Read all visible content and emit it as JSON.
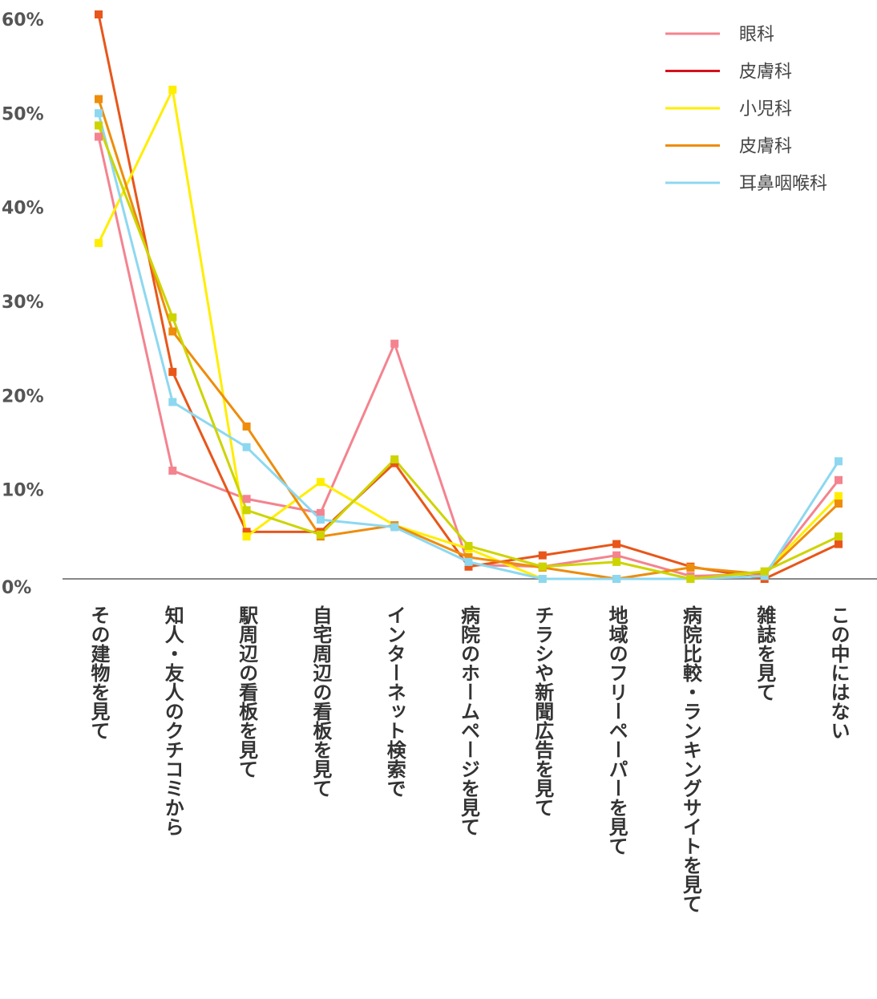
{
  "chart_data": {
    "type": "line",
    "title": "",
    "xlabel": "",
    "ylabel": "",
    "ylim": [
      0,
      60
    ],
    "y_ticks": [
      "0%",
      "10%",
      "20%",
      "30%",
      "40%",
      "50%",
      "60%"
    ],
    "y_tick_values": [
      0,
      10,
      20,
      30,
      40,
      50,
      60
    ],
    "grid": false,
    "legend_position": "top-right",
    "categories": [
      "その建物を見て",
      "知人・友人のクチコミから",
      "駅周辺の看板を見て",
      "自宅周辺の看板を見て",
      "インターネット検索で",
      "病院のホームページを見て",
      "チラシや新聞広告を見て",
      "地域のフリーペーパーを見て",
      "病院比較・ランキングサイトを見て",
      "雑誌を見て",
      "この中にはない"
    ],
    "series": [
      {
        "name": "眼科",
        "color": "#f4838f",
        "values": [
          47.0,
          11.5,
          8.5,
          7.0,
          25.0,
          1.5,
          1.3,
          2.5,
          0.3,
          0.5,
          10.5
        ],
        "in_legend": true
      },
      {
        "name": "皮膚科",
        "color": "#e8561a",
        "values": [
          60.0,
          22.0,
          5.0,
          5.0,
          12.3,
          1.3,
          2.5,
          3.7,
          1.3,
          0.0,
          3.7
        ],
        "in_legend": false
      },
      {
        "name": "小児科",
        "color": "#ffee00",
        "values": [
          35.7,
          52.0,
          4.5,
          10.3,
          5.7,
          3.2,
          0.0,
          0.0,
          0.0,
          0.7,
          8.8
        ],
        "in_legend": true
      },
      {
        "name": "皮膚科",
        "color": "#ee8c0c",
        "values": [
          51.0,
          26.3,
          16.2,
          4.5,
          5.7,
          2.3,
          1.2,
          0.0,
          1.2,
          0.5,
          8.0
        ],
        "in_legend": true
      },
      {
        "name": "耳鼻咽喉科",
        "color": "#8dd8f0",
        "values": [
          49.5,
          18.8,
          14.0,
          6.3,
          5.5,
          1.8,
          0.0,
          0.0,
          0.0,
          0.3,
          12.5
        ],
        "in_legend": true
      },
      {
        "name": "",
        "color": "#cdd400",
        "values": [
          48.2,
          27.8,
          7.3,
          4.7,
          12.7,
          3.5,
          1.3,
          1.8,
          0.0,
          0.8,
          4.5
        ],
        "in_legend": false
      }
    ],
    "legend": [
      {
        "label": "眼科",
        "color": "#f4838f"
      },
      {
        "label": "皮膚科",
        "color": "#d6111b"
      },
      {
        "label": "小児科",
        "color": "#ffee00"
      },
      {
        "label": "皮膚科",
        "color": "#ee8c0c"
      },
      {
        "label": "耳鼻咽喉科",
        "color": "#8dd8f0"
      }
    ],
    "axis_color": "#888888"
  }
}
